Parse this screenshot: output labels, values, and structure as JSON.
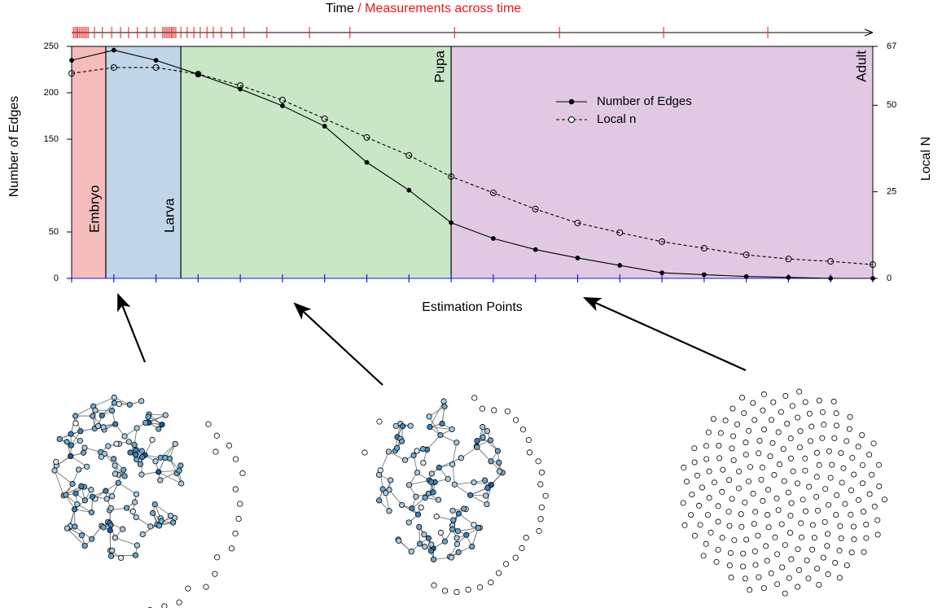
{
  "chart_data": {
    "type": "line",
    "time_axis_label": "Time",
    "time_axis_sublabel": "/ Measurements across time",
    "time_marks": [
      0.04,
      0.08,
      0.12,
      0.15,
      0.19,
      0.23,
      0.27,
      0.31,
      0.35,
      0.39,
      0.54,
      0.73,
      0.95,
      1.16,
      1.35,
      1.56,
      1.78,
      1.97,
      2.16,
      2.2,
      2.24,
      2.28,
      2.32,
      2.36,
      2.39,
      2.43,
      2.47,
      2.59,
      2.74,
      2.9,
      3.05,
      3.21,
      3.36,
      3.55,
      3.8,
      4.09,
      4.63,
      5.64,
      6.6,
      9.08,
      11.57,
      14.04,
      16.51
    ],
    "time_marks_color": "#e41a1c",
    "x_label": "Estimation Points",
    "x_label_color": "#1a1adf",
    "y_label": "Number of Edges",
    "y2_label": "Local N",
    "x": [
      0,
      1,
      2,
      3,
      4,
      5,
      6,
      7,
      8,
      9,
      10,
      11,
      12,
      13,
      14,
      15,
      16,
      17,
      18,
      19
    ],
    "xlim": [
      0,
      19
    ],
    "ylim": [
      0,
      250
    ],
    "yticks": [
      0,
      50,
      150,
      200,
      250
    ],
    "y2lim": [
      0,
      67
    ],
    "y2ticks": [
      0,
      25,
      50,
      67
    ],
    "stages": [
      {
        "name": "Embryo",
        "start": 0,
        "end": 0.81,
        "color": "#f4bcbb",
        "text_color": "#e41a1c",
        "label_position": "bottom"
      },
      {
        "name": "Larva",
        "start": 0.81,
        "end": 2.59,
        "color": "#c0d5e7",
        "text_color": "#377eb8",
        "label_position": "bottom"
      },
      {
        "name": "Pupa",
        "start": 2.59,
        "end": 9.0,
        "color": "#c9e6c7",
        "text_color": "#4daf4a",
        "label_position": "top"
      },
      {
        "name": "Adult",
        "start": 9.0,
        "end": 19,
        "color": "#e1c9e3",
        "text_color": "#984ea3",
        "label_position": "top"
      }
    ],
    "legend": "upper right",
    "series": [
      {
        "name": "Number of Edges",
        "color": "#000000",
        "line_style": "solid",
        "marker": "filled",
        "values": [
          235,
          246,
          235,
          220,
          204,
          186,
          164,
          125,
          95,
          60,
          43,
          31,
          22,
          14,
          6,
          4,
          2,
          1,
          0,
          0
        ]
      },
      {
        "name": "Local n",
        "color": "#000000",
        "line_style": "dashed",
        "marker": "open",
        "axis": "y2",
        "values": [
          59.2,
          60.9,
          60.9,
          59,
          55.7,
          51.5,
          46.1,
          40.7,
          35.5,
          29.4,
          24.7,
          20,
          16,
          13.2,
          10.6,
          8.7,
          6.8,
          5.6,
          4.9,
          4
        ]
      }
    ]
  }
}
